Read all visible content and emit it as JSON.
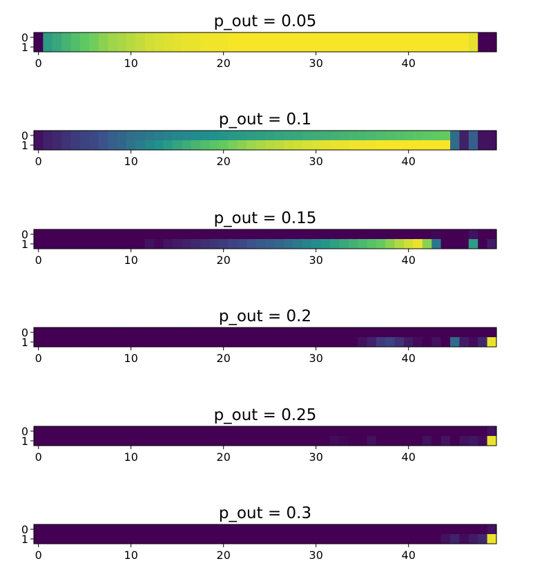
{
  "chart_data": [
    {
      "type": "heatmap",
      "title": "p_out = 0.05",
      "x_ticks": [
        0,
        10,
        20,
        30,
        40
      ],
      "y_ticks": [
        0,
        1
      ],
      "n_cols": 50,
      "rows": [
        [
          0.0,
          0.55,
          0.6,
          0.65,
          0.7,
          0.75,
          0.78,
          0.82,
          0.85,
          0.87,
          0.89,
          0.91,
          0.93,
          0.94,
          0.95,
          0.96,
          0.97,
          0.97,
          0.98,
          0.98,
          0.98,
          0.99,
          0.99,
          0.99,
          0.99,
          0.99,
          0.99,
          0.99,
          0.99,
          0.99,
          0.99,
          0.99,
          0.99,
          0.99,
          0.99,
          0.99,
          0.99,
          0.99,
          0.99,
          0.99,
          0.99,
          0.99,
          0.99,
          0.99,
          0.99,
          0.99,
          0.99,
          0.96,
          0.0,
          0.0
        ],
        [
          0.0,
          0.55,
          0.6,
          0.65,
          0.7,
          0.75,
          0.78,
          0.82,
          0.85,
          0.87,
          0.89,
          0.91,
          0.93,
          0.94,
          0.95,
          0.96,
          0.97,
          0.97,
          0.98,
          0.98,
          0.98,
          0.99,
          0.99,
          0.99,
          0.99,
          0.99,
          0.99,
          0.99,
          0.99,
          0.99,
          0.99,
          0.99,
          0.99,
          0.99,
          0.99,
          0.99,
          0.99,
          0.99,
          0.99,
          0.99,
          0.99,
          0.99,
          0.99,
          0.99,
          0.99,
          0.99,
          0.99,
          0.96,
          0.0,
          0.0
        ]
      ]
    },
    {
      "type": "heatmap",
      "title": "p_out = 0.1",
      "x_ticks": [
        0,
        10,
        20,
        30,
        40
      ],
      "y_ticks": [
        0,
        1
      ],
      "n_cols": 50,
      "rows": [
        [
          0.05,
          0.1,
          0.12,
          0.15,
          0.18,
          0.2,
          0.22,
          0.25,
          0.3,
          0.33,
          0.36,
          0.38,
          0.4,
          0.42,
          0.44,
          0.46,
          0.47,
          0.48,
          0.49,
          0.5,
          0.52,
          0.53,
          0.54,
          0.55,
          0.56,
          0.57,
          0.58,
          0.59,
          0.6,
          0.61,
          0.62,
          0.63,
          0.64,
          0.65,
          0.66,
          0.67,
          0.68,
          0.69,
          0.7,
          0.71,
          0.72,
          0.73,
          0.74,
          0.75,
          0.76,
          0.35,
          0.1,
          0.3,
          0.05,
          0.05
        ],
        [
          0.05,
          0.1,
          0.12,
          0.15,
          0.18,
          0.2,
          0.22,
          0.25,
          0.3,
          0.33,
          0.38,
          0.42,
          0.46,
          0.5,
          0.54,
          0.58,
          0.62,
          0.66,
          0.7,
          0.73,
          0.76,
          0.79,
          0.82,
          0.85,
          0.87,
          0.89,
          0.9,
          0.92,
          0.93,
          0.94,
          0.95,
          0.96,
          0.97,
          0.97,
          0.98,
          0.98,
          0.98,
          0.99,
          0.99,
          0.99,
          0.99,
          0.99,
          0.99,
          0.99,
          0.99,
          0.35,
          0.1,
          0.3,
          0.05,
          0.05
        ]
      ]
    },
    {
      "type": "heatmap",
      "title": "p_out = 0.15",
      "x_ticks": [
        0,
        10,
        20,
        30,
        40
      ],
      "y_ticks": [
        0,
        1
      ],
      "n_cols": 50,
      "rows": [
        [
          0.0,
          0.0,
          0.0,
          0.0,
          0.0,
          0.0,
          0.0,
          0.0,
          0.0,
          0.0,
          0.0,
          0.0,
          0.0,
          0.0,
          0.0,
          0.0,
          0.0,
          0.0,
          0.0,
          0.0,
          0.0,
          0.0,
          0.0,
          0.0,
          0.0,
          0.0,
          0.0,
          0.0,
          0.0,
          0.0,
          0.0,
          0.0,
          0.0,
          0.0,
          0.0,
          0.0,
          0.0,
          0.0,
          0.0,
          0.0,
          0.0,
          0.0,
          0.0,
          0.02,
          0.0,
          0.0,
          0.0,
          0.05,
          0.0,
          0.0
        ],
        [
          0.0,
          0.0,
          0.0,
          0.0,
          0.0,
          0.0,
          0.0,
          0.0,
          0.0,
          0.0,
          0.0,
          0.0,
          0.05,
          0.02,
          0.06,
          0.08,
          0.1,
          0.12,
          0.14,
          0.16,
          0.18,
          0.2,
          0.22,
          0.25,
          0.28,
          0.3,
          0.33,
          0.36,
          0.4,
          0.44,
          0.48,
          0.52,
          0.56,
          0.6,
          0.64,
          0.68,
          0.72,
          0.76,
          0.82,
          0.88,
          0.93,
          0.97,
          0.82,
          0.4,
          0.0,
          0.0,
          0.0,
          0.55,
          0.0,
          0.08
        ]
      ]
    },
    {
      "type": "heatmap",
      "title": "p_out = 0.2",
      "x_ticks": [
        0,
        10,
        20,
        30,
        40
      ],
      "y_ticks": [
        0,
        1
      ],
      "n_cols": 50,
      "rows": [
        [
          0.0,
          0.0,
          0.0,
          0.0,
          0.0,
          0.0,
          0.0,
          0.0,
          0.0,
          0.0,
          0.0,
          0.0,
          0.0,
          0.0,
          0.0,
          0.0,
          0.0,
          0.0,
          0.0,
          0.0,
          0.0,
          0.0,
          0.0,
          0.0,
          0.0,
          0.0,
          0.0,
          0.0,
          0.0,
          0.0,
          0.0,
          0.0,
          0.0,
          0.0,
          0.0,
          0.0,
          0.0,
          0.0,
          0.0,
          0.0,
          0.0,
          0.0,
          0.0,
          0.0,
          0.0,
          0.0,
          0.0,
          0.0,
          0.0,
          0.0
        ],
        [
          0.0,
          0.0,
          0.0,
          0.0,
          0.0,
          0.0,
          0.0,
          0.0,
          0.0,
          0.0,
          0.0,
          0.0,
          0.0,
          0.0,
          0.0,
          0.0,
          0.0,
          0.0,
          0.0,
          0.0,
          0.0,
          0.0,
          0.0,
          0.0,
          0.0,
          0.0,
          0.0,
          0.0,
          0.0,
          0.0,
          0.0,
          0.0,
          0.0,
          0.0,
          0.0,
          0.05,
          0.1,
          0.18,
          0.2,
          0.15,
          0.08,
          0.03,
          0.0,
          0.05,
          0.0,
          0.35,
          0.08,
          0.03,
          0.12,
          0.97
        ]
      ]
    },
    {
      "type": "heatmap",
      "title": "p_out = 0.25",
      "x_ticks": [
        0,
        10,
        20,
        30,
        40
      ],
      "y_ticks": [
        0,
        1
      ],
      "n_cols": 50,
      "rows": [
        [
          0.0,
          0.0,
          0.0,
          0.0,
          0.0,
          0.0,
          0.0,
          0.0,
          0.0,
          0.0,
          0.0,
          0.0,
          0.0,
          0.0,
          0.0,
          0.0,
          0.0,
          0.0,
          0.0,
          0.0,
          0.0,
          0.0,
          0.0,
          0.0,
          0.0,
          0.0,
          0.0,
          0.0,
          0.0,
          0.0,
          0.0,
          0.0,
          0.0,
          0.0,
          0.0,
          0.0,
          0.0,
          0.0,
          0.0,
          0.0,
          0.0,
          0.0,
          0.0,
          0.0,
          0.0,
          0.0,
          0.0,
          0.0,
          0.0,
          0.05
        ],
        [
          0.0,
          0.0,
          0.0,
          0.0,
          0.0,
          0.0,
          0.0,
          0.0,
          0.0,
          0.0,
          0.0,
          0.0,
          0.0,
          0.0,
          0.0,
          0.0,
          0.0,
          0.0,
          0.0,
          0.0,
          0.0,
          0.0,
          0.0,
          0.0,
          0.0,
          0.0,
          0.0,
          0.0,
          0.0,
          0.0,
          0.0,
          0.0,
          0.03,
          0.02,
          0.0,
          0.0,
          0.05,
          0.0,
          0.0,
          0.0,
          0.0,
          0.0,
          0.05,
          0.0,
          0.06,
          0.0,
          0.05,
          0.07,
          0.03,
          0.97
        ]
      ]
    },
    {
      "type": "heatmap",
      "title": "p_out = 0.3",
      "x_ticks": [
        0,
        10,
        20,
        30,
        40
      ],
      "y_ticks": [
        0,
        1
      ],
      "n_cols": 50,
      "rows": [
        [
          0.0,
          0.0,
          0.0,
          0.0,
          0.0,
          0.0,
          0.0,
          0.0,
          0.0,
          0.0,
          0.0,
          0.0,
          0.0,
          0.0,
          0.0,
          0.0,
          0.0,
          0.0,
          0.0,
          0.0,
          0.0,
          0.0,
          0.0,
          0.0,
          0.0,
          0.0,
          0.0,
          0.0,
          0.0,
          0.0,
          0.0,
          0.0,
          0.0,
          0.0,
          0.0,
          0.0,
          0.0,
          0.0,
          0.0,
          0.0,
          0.0,
          0.0,
          0.0,
          0.0,
          0.0,
          0.0,
          0.0,
          0.0,
          0.0,
          0.05
        ],
        [
          0.0,
          0.0,
          0.0,
          0.0,
          0.0,
          0.0,
          0.0,
          0.0,
          0.0,
          0.0,
          0.0,
          0.0,
          0.0,
          0.0,
          0.0,
          0.0,
          0.0,
          0.0,
          0.0,
          0.0,
          0.0,
          0.0,
          0.0,
          0.0,
          0.0,
          0.0,
          0.0,
          0.0,
          0.0,
          0.0,
          0.0,
          0.0,
          0.0,
          0.0,
          0.0,
          0.0,
          0.0,
          0.0,
          0.0,
          0.0,
          0.0,
          0.0,
          0.0,
          0.0,
          0.05,
          0.1,
          0.03,
          0.08,
          0.12,
          0.97
        ]
      ]
    }
  ],
  "colormap": {
    "name": "viridis",
    "stops": [
      "#440154",
      "#3b528b",
      "#21918c",
      "#5ec962",
      "#fde725"
    ]
  }
}
